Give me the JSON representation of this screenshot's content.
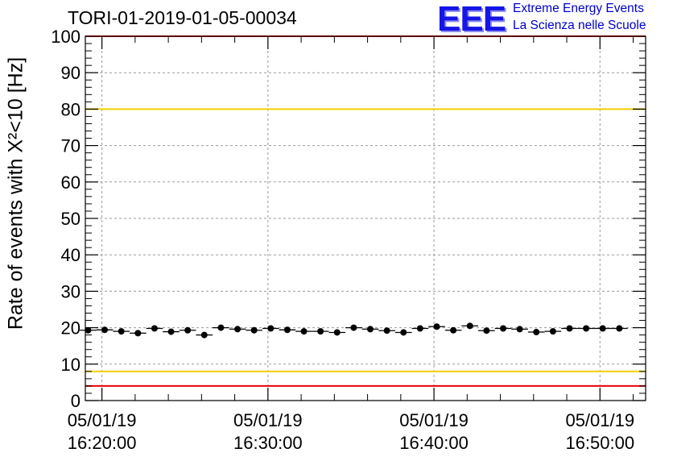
{
  "chart_data": {
    "type": "scatter",
    "title": "TORI-01-2019-01-05-00034",
    "ylabel": "Rate of events with X²<10 [Hz]",
    "ylim": [
      0,
      100
    ],
    "yticks": [
      0,
      10,
      20,
      30,
      40,
      50,
      60,
      70,
      80,
      90,
      100
    ],
    "xlim": [
      "2019-01-05 16:19:00",
      "2019-01-05 16:52:45"
    ],
    "xticks": [
      {
        "value": "2019-01-05 16:20:00",
        "date": "05/01/19",
        "time": "16:20:00"
      },
      {
        "value": "2019-01-05 16:30:00",
        "date": "05/01/19",
        "time": "16:30:00"
      },
      {
        "value": "2019-01-05 16:40:00",
        "date": "05/01/19",
        "time": "16:40:00"
      },
      {
        "value": "2019-01-05 16:50:00",
        "date": "05/01/19",
        "time": "16:50:00"
      }
    ],
    "grid": true,
    "reference_lines": [
      {
        "y": 80,
        "color": "#f0d000"
      },
      {
        "y": 8,
        "color": "#f0d000"
      },
      {
        "y": 4,
        "color": "#ee0000"
      },
      {
        "y": 100,
        "color": "#ee0000"
      }
    ],
    "series": [
      {
        "color": "#000000",
        "points": [
          {
            "x": "16:19:10",
            "y": 19.3
          },
          {
            "x": "16:20:10",
            "y": 19.4
          },
          {
            "x": "16:21:10",
            "y": 19.0
          },
          {
            "x": "16:22:10",
            "y": 18.5
          },
          {
            "x": "16:23:10",
            "y": 19.8
          },
          {
            "x": "16:24:10",
            "y": 18.9
          },
          {
            "x": "16:25:10",
            "y": 19.3
          },
          {
            "x": "16:26:10",
            "y": 18.0
          },
          {
            "x": "16:27:10",
            "y": 20.0
          },
          {
            "x": "16:28:10",
            "y": 19.6
          },
          {
            "x": "16:29:10",
            "y": 19.3
          },
          {
            "x": "16:30:10",
            "y": 19.8
          },
          {
            "x": "16:31:10",
            "y": 19.4
          },
          {
            "x": "16:32:10",
            "y": 19.0
          },
          {
            "x": "16:33:10",
            "y": 19.0
          },
          {
            "x": "16:34:10",
            "y": 18.7
          },
          {
            "x": "16:35:10",
            "y": 20.0
          },
          {
            "x": "16:36:10",
            "y": 19.6
          },
          {
            "x": "16:37:10",
            "y": 19.2
          },
          {
            "x": "16:38:10",
            "y": 18.7
          },
          {
            "x": "16:39:10",
            "y": 19.8
          },
          {
            "x": "16:40:10",
            "y": 20.3
          },
          {
            "x": "16:41:10",
            "y": 19.3
          },
          {
            "x": "16:42:10",
            "y": 20.5
          },
          {
            "x": "16:43:10",
            "y": 19.2
          },
          {
            "x": "16:44:10",
            "y": 19.8
          },
          {
            "x": "16:45:10",
            "y": 19.6
          },
          {
            "x": "16:46:10",
            "y": 18.8
          },
          {
            "x": "16:47:10",
            "y": 19.0
          },
          {
            "x": "16:48:10",
            "y": 19.8
          },
          {
            "x": "16:49:10",
            "y": 19.8
          },
          {
            "x": "16:50:10",
            "y": 19.8
          },
          {
            "x": "16:51:10",
            "y": 19.8
          }
        ]
      }
    ]
  },
  "logo": {
    "mark": "EEE",
    "line1": "Extreme Energy Events",
    "line2": "La Scienza nelle Scuole"
  }
}
